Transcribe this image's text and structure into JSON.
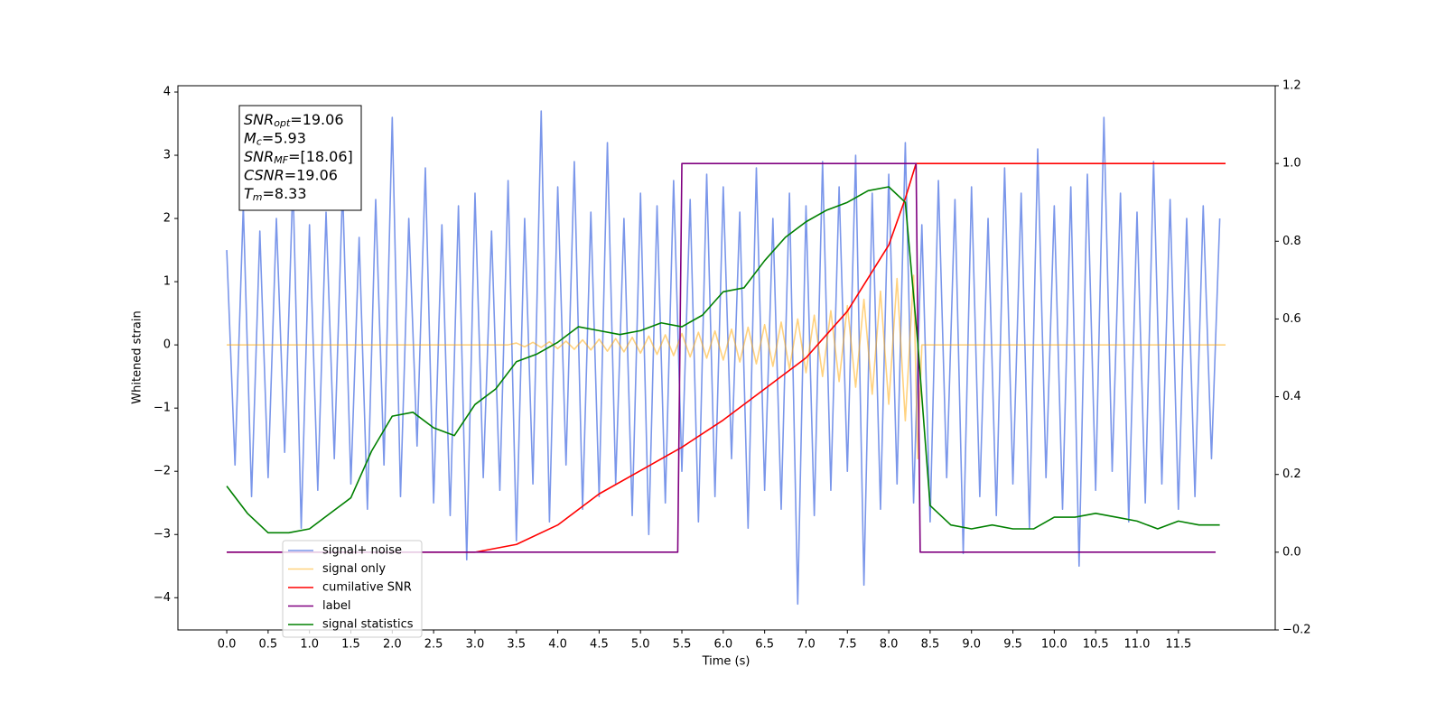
{
  "chart_data": {
    "type": "line",
    "xlabel": "Time (s)",
    "ylabel": "Whitened strain",
    "xlim": [
      -0.59,
      12.67
    ],
    "ylim": [
      -4.51,
      4.1
    ],
    "y2lim": [
      -0.2,
      1.2
    ],
    "xticks": [
      {
        "value": 0,
        "label": "0.0"
      },
      {
        "value": 0.5,
        "label": "0.5"
      },
      {
        "value": 1,
        "label": "1.0"
      },
      {
        "value": 1.5,
        "label": "1.5"
      },
      {
        "value": 2,
        "label": "2.0"
      },
      {
        "value": 2.5,
        "label": "2.5"
      },
      {
        "value": 3,
        "label": "3.0"
      },
      {
        "value": 3.5,
        "label": "3.5"
      },
      {
        "value": 4,
        "label": "4.0"
      },
      {
        "value": 4.5,
        "label": "4.5"
      },
      {
        "value": 5,
        "label": "5.0"
      },
      {
        "value": 5.5,
        "label": "5.5"
      },
      {
        "value": 6,
        "label": "6.0"
      },
      {
        "value": 6.5,
        "label": "6.5"
      },
      {
        "value": 7,
        "label": "7.0"
      },
      {
        "value": 7.5,
        "label": "7.5"
      },
      {
        "value": 8,
        "label": "8.0"
      },
      {
        "value": 8.5,
        "label": "8.5"
      },
      {
        "value": 9,
        "label": "9.0"
      },
      {
        "value": 9.5,
        "label": "9.5"
      },
      {
        "value": 10,
        "label": "10.0"
      },
      {
        "value": 10.5,
        "label": "10.5"
      },
      {
        "value": 11,
        "label": "11.0"
      },
      {
        "value": 11.5,
        "label": "11.5"
      }
    ],
    "yticks": [
      {
        "value": -4,
        "label": "−4"
      },
      {
        "value": -3,
        "label": "−3"
      },
      {
        "value": -2,
        "label": "−2"
      },
      {
        "value": -1,
        "label": "−1"
      },
      0,
      1,
      2,
      3,
      4
    ],
    "y2ticks": [
      {
        "value": -0.2,
        "label": "−0.2"
      },
      {
        "value": 0,
        "label": "0.0"
      },
      {
        "value": 0.2,
        "label": "0.2"
      },
      {
        "value": 0.4,
        "label": "0.4"
      },
      {
        "value": 0.6,
        "label": "0.6"
      },
      {
        "value": 0.8,
        "label": "0.8"
      },
      {
        "value": 1,
        "label": "1.0"
      },
      {
        "value": 1.2,
        "label": "1.2"
      }
    ],
    "grid": false,
    "annotation": [
      {
        "name": "SNR",
        "sub": "opt",
        "text": "=19.06"
      },
      {
        "name": "M",
        "sub": "c",
        "text": "=5.93"
      },
      {
        "name": "SNR",
        "sub": "MF",
        "text": "=[18.06]"
      },
      {
        "name": "CSNR",
        "text": "=19.06"
      },
      {
        "name": "T",
        "sub": "m",
        "text": "=8.33"
      }
    ],
    "series": [
      {
        "name": "signal+ noise",
        "color": "#4169e1",
        "alpha": 0.7,
        "x": [
          0.0,
          0.1,
          0.2,
          0.3,
          0.4,
          0.5,
          0.6,
          0.7,
          0.8,
          0.9,
          1.0,
          1.1,
          1.2,
          1.3,
          1.4,
          1.5,
          1.6,
          1.7,
          1.8,
          1.9,
          2.0,
          2.1,
          2.2,
          2.3,
          2.4,
          2.5,
          2.6,
          2.7,
          2.8,
          2.9,
          3.0,
          3.1,
          3.2,
          3.3,
          3.4,
          3.5,
          3.6,
          3.7,
          3.8,
          3.9,
          4.0,
          4.1,
          4.2,
          4.3,
          4.4,
          4.5,
          4.6,
          4.7,
          4.8,
          4.9,
          5.0,
          5.1,
          5.2,
          5.3,
          5.4,
          5.5,
          5.6,
          5.7,
          5.8,
          5.9,
          6.0,
          6.1,
          6.2,
          6.3,
          6.4,
          6.5,
          6.6,
          6.7,
          6.8,
          6.9,
          7.0,
          7.1,
          7.2,
          7.3,
          7.4,
          7.5,
          7.6,
          7.7,
          7.8,
          7.9,
          8.0,
          8.1,
          8.2,
          8.3,
          8.4,
          8.5,
          8.6,
          8.7,
          8.8,
          8.9,
          9.0,
          9.1,
          9.2,
          9.3,
          9.4,
          9.5,
          9.6,
          9.7,
          9.8,
          9.9,
          10.0,
          10.1,
          10.2,
          10.3,
          10.4,
          10.5,
          10.6,
          10.7,
          10.8,
          10.9,
          11.0,
          11.1,
          11.2,
          11.3,
          11.4,
          11.5,
          11.6,
          11.7,
          11.8,
          11.9,
          12.0
        ],
        "values": [
          1.5,
          -1.9,
          2.2,
          -2.4,
          1.8,
          -2.1,
          2.0,
          -1.7,
          2.6,
          -2.9,
          1.9,
          -2.3,
          2.1,
          -1.8,
          2.5,
          -2.2,
          1.7,
          -2.6,
          2.3,
          -1.9,
          3.6,
          -2.4,
          2.0,
          -1.6,
          2.8,
          -2.5,
          1.9,
          -2.7,
          2.2,
          -3.4,
          2.4,
          -2.1,
          1.8,
          -2.3,
          2.6,
          -3.1,
          2.0,
          -2.2,
          3.7,
          -2.8,
          2.5,
          -1.9,
          2.9,
          -2.6,
          2.1,
          -2.4,
          3.2,
          -2.2,
          2.0,
          -2.7,
          2.4,
          -3.0,
          2.2,
          -2.5,
          2.6,
          -2.0,
          2.3,
          -2.8,
          2.7,
          -2.4,
          2.5,
          -1.8,
          2.1,
          -2.9,
          2.8,
          -2.3,
          2.0,
          -2.6,
          2.4,
          -4.1,
          2.2,
          -2.7,
          2.9,
          -2.3,
          2.5,
          -2.0,
          3.0,
          -3.8,
          2.4,
          -2.6,
          2.7,
          -2.2,
          3.2,
          -2.5,
          1.9,
          -2.8,
          2.6,
          -2.1,
          2.3,
          -3.3,
          2.5,
          -2.4,
          2.0,
          -2.7,
          2.8,
          -2.2,
          2.4,
          -2.9,
          3.1,
          -2.1,
          2.2,
          -2.6,
          2.5,
          -3.5,
          2.7,
          -2.3,
          3.6,
          -2.0,
          2.4,
          -2.8,
          2.1,
          -2.5,
          2.9,
          -2.2,
          2.3,
          -2.6,
          2.0,
          -2.4,
          2.2,
          -1.8,
          2.0
        ]
      },
      {
        "name": "signal only",
        "color": "#ffa500",
        "alpha": 0.5,
        "x": [
          0.0,
          3.4,
          3.5,
          3.6,
          3.7,
          3.8,
          3.9,
          4.0,
          4.1,
          4.2,
          4.3,
          4.4,
          4.5,
          4.6,
          4.7,
          4.8,
          4.9,
          5.0,
          5.1,
          5.2,
          5.3,
          5.4,
          5.5,
          5.6,
          5.7,
          5.8,
          5.9,
          6.0,
          6.1,
          6.2,
          6.3,
          6.4,
          6.5,
          6.6,
          6.7,
          6.8,
          6.9,
          7.0,
          7.1,
          7.2,
          7.3,
          7.4,
          7.5,
          7.6,
          7.7,
          7.8,
          7.9,
          8.0,
          8.1,
          8.2,
          8.3,
          8.35,
          8.4,
          12.07
        ],
        "values": [
          0,
          0,
          0.03,
          -0.03,
          0.04,
          -0.04,
          0.05,
          -0.06,
          0.06,
          -0.07,
          0.08,
          -0.08,
          0.09,
          -0.1,
          0.1,
          -0.11,
          0.12,
          -0.13,
          0.14,
          -0.15,
          0.16,
          -0.17,
          0.18,
          -0.19,
          0.2,
          -0.21,
          0.22,
          -0.24,
          0.25,
          -0.27,
          0.28,
          -0.3,
          0.32,
          -0.34,
          0.36,
          -0.38,
          0.41,
          -0.44,
          0.47,
          -0.5,
          0.54,
          -0.58,
          0.62,
          -0.67,
          0.72,
          -0.78,
          0.85,
          -0.94,
          1.05,
          -1.2,
          1.1,
          -1.8,
          0,
          0
        ]
      },
      {
        "name": "cumilative SNR",
        "color": "#ff0000",
        "axis": "y2",
        "x": [
          0.0,
          3.0,
          3.5,
          4.0,
          4.5,
          5.0,
          5.5,
          6.0,
          6.5,
          7.0,
          7.5,
          8.0,
          8.2,
          8.33,
          12.07
        ],
        "values": [
          0,
          0,
          0.02,
          0.07,
          0.15,
          0.21,
          0.27,
          0.34,
          0.42,
          0.5,
          0.62,
          0.79,
          0.91,
          1.0,
          1.0
        ]
      },
      {
        "name": "label",
        "color": "#800080",
        "axis": "y2",
        "x": [
          0.0,
          5.45,
          5.5,
          8.33,
          8.38,
          11.95
        ],
        "values": [
          0,
          0,
          1,
          1,
          0,
          0
        ]
      },
      {
        "name": "signal statistics",
        "color": "#008000",
        "axis": "y2",
        "x": [
          0.0,
          0.25,
          0.5,
          0.75,
          1.0,
          1.25,
          1.5,
          1.75,
          2.0,
          2.25,
          2.5,
          2.75,
          3.0,
          3.25,
          3.5,
          3.75,
          4.0,
          4.25,
          4.5,
          4.75,
          5.0,
          5.25,
          5.5,
          5.75,
          6.0,
          6.25,
          6.5,
          6.75,
          7.0,
          7.25,
          7.5,
          7.75,
          8.0,
          8.2,
          8.35,
          8.5,
          8.75,
          9.0,
          9.25,
          9.5,
          9.75,
          10.0,
          10.25,
          10.5,
          10.75,
          11.0,
          11.25,
          11.5,
          11.75,
          12.0
        ],
        "values": [
          0.17,
          0.1,
          0.05,
          0.05,
          0.06,
          0.1,
          0.14,
          0.26,
          0.35,
          0.36,
          0.32,
          0.3,
          0.38,
          0.42,
          0.49,
          0.51,
          0.54,
          0.58,
          0.57,
          0.56,
          0.57,
          0.59,
          0.58,
          0.61,
          0.67,
          0.68,
          0.75,
          0.81,
          0.85,
          0.88,
          0.9,
          0.93,
          0.94,
          0.9,
          0.54,
          0.12,
          0.07,
          0.06,
          0.07,
          0.06,
          0.06,
          0.09,
          0.09,
          0.1,
          0.09,
          0.08,
          0.06,
          0.08,
          0.07,
          0.07
        ]
      }
    ]
  }
}
